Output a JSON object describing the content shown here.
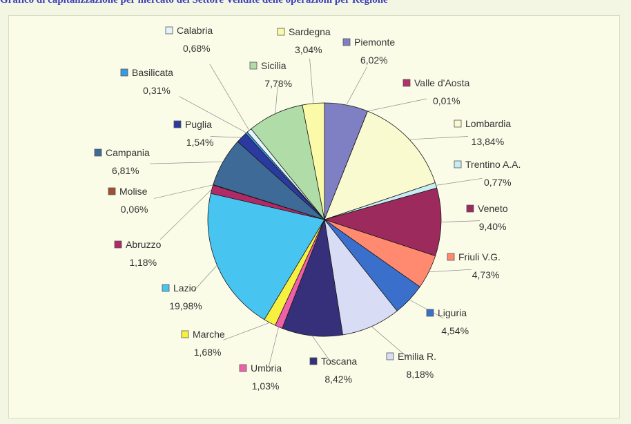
{
  "title": "Grafico di capitalizzazione per mercato del Settore Vendite delle operazioni per Regione",
  "chart_data": {
    "type": "pie",
    "title": "Grafico di capitalizzazione per mercato del Settore Vendite delle operazioni per Regione",
    "legend": "inline-labels",
    "slices": [
      {
        "name": "Piemonte",
        "value": 6.02,
        "label": "6,02%",
        "color": "#7f7fc4"
      },
      {
        "name": "Valle d'Aosta",
        "value": 0.01,
        "label": "0,01%",
        "color": "#b0336b"
      },
      {
        "name": "Lombardia",
        "value": 13.84,
        "label": "13,84%",
        "color": "#fafad0"
      },
      {
        "name": "Trentino A.A.",
        "value": 0.77,
        "label": "0,77%",
        "color": "#c8ecf4"
      },
      {
        "name": "Veneto",
        "value": 9.4,
        "label": "9,40%",
        "color": "#9c2a5c"
      },
      {
        "name": "Friuli V.G.",
        "value": 4.73,
        "label": "4,73%",
        "color": "#ff8a70"
      },
      {
        "name": "Liguria",
        "value": 4.54,
        "label": "4,54%",
        "color": "#3a6fcc"
      },
      {
        "name": "Emilia R.",
        "value": 8.18,
        "label": "8,18%",
        "color": "#d8dcf4"
      },
      {
        "name": "Toscana",
        "value": 8.42,
        "label": "8,42%",
        "color": "#36307a"
      },
      {
        "name": "Umbria",
        "value": 1.03,
        "label": "1,03%",
        "color": "#f060a8"
      },
      {
        "name": "Marche",
        "value": 1.68,
        "label": "1,68%",
        "color": "#f8f040"
      },
      {
        "name": "Lazio",
        "value": 19.98,
        "label": "19,98%",
        "color": "#48c4f0"
      },
      {
        "name": "Abruzzo",
        "value": 1.18,
        "label": "1,18%",
        "color": "#b02a68"
      },
      {
        "name": "Molise",
        "value": 0.06,
        "label": "0,06%",
        "color": "#a05030"
      },
      {
        "name": "Campania",
        "value": 6.81,
        "label": "6,81%",
        "color": "#3e6a98"
      },
      {
        "name": "Puglia",
        "value": 1.54,
        "label": "1,54%",
        "color": "#2a3aa0"
      },
      {
        "name": "Basilicata",
        "value": 0.31,
        "label": "0,31%",
        "color": "#3a9ae0"
      },
      {
        "name": "Calabria",
        "value": 0.68,
        "label": "0,68%",
        "color": "#e4f4fc"
      },
      {
        "name": "Sicilia",
        "value": 7.78,
        "label": "7,78%",
        "color": "#b0dca8"
      },
      {
        "name": "Sardegna",
        "value": 3.04,
        "label": "3,04%",
        "color": "#fafaa8"
      }
    ]
  }
}
